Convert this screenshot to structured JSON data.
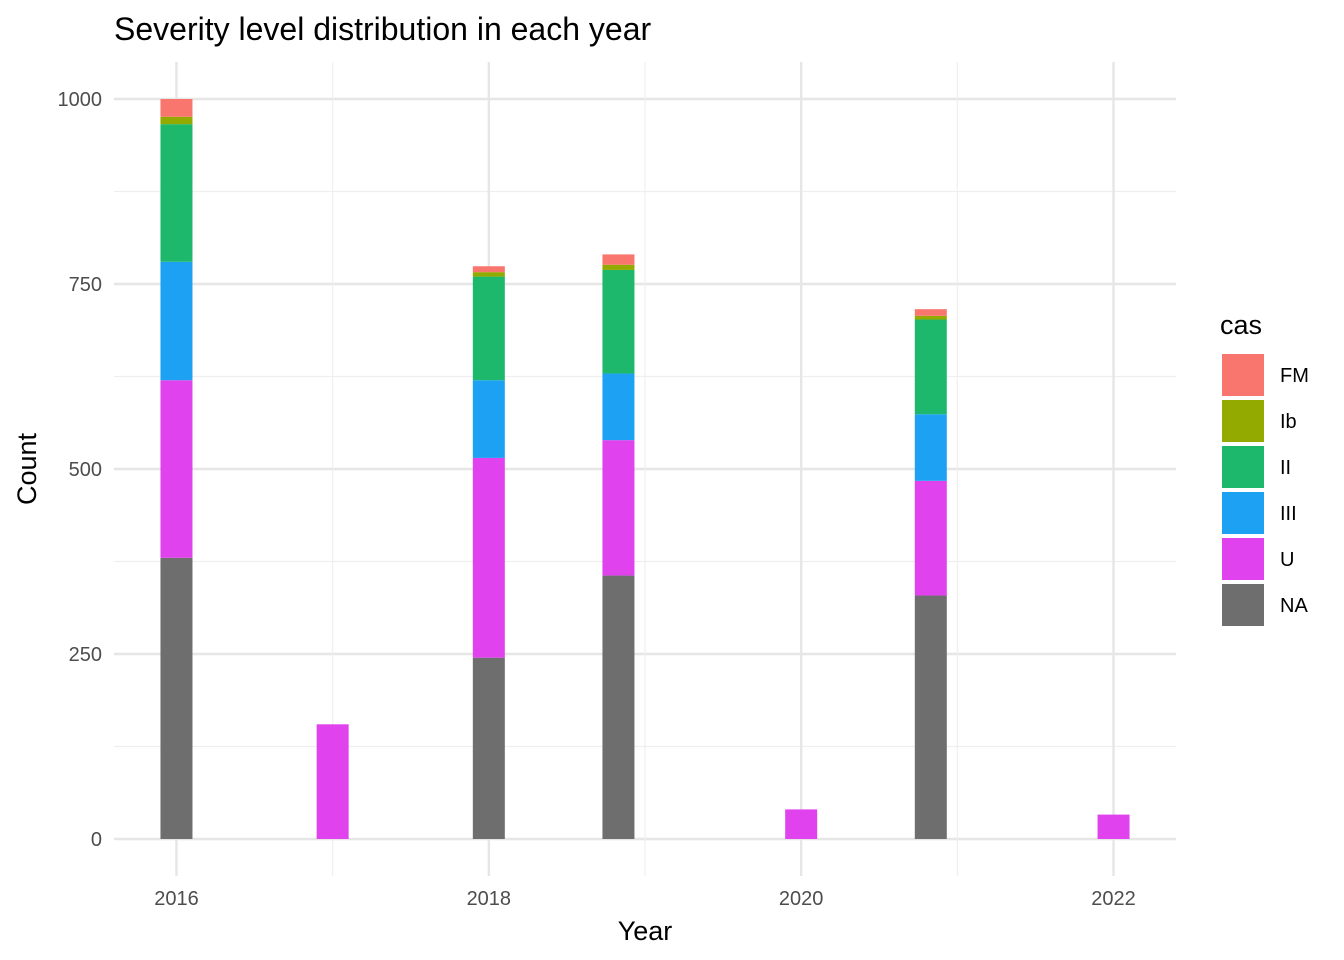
{
  "chart_data": {
    "type": "bar",
    "stacked": true,
    "title": "Severity level distribution in each year",
    "xlabel": "Year",
    "ylabel": "Count",
    "x_ticks": [
      2016,
      2018,
      2020,
      2022
    ],
    "y_ticks": [
      0,
      250,
      500,
      750,
      1000
    ],
    "xlim": [
      2015.6,
      2022.4
    ],
    "ylim": [
      -50,
      1050
    ],
    "grid": true,
    "legend": {
      "title": "cas",
      "position": "right"
    },
    "series": [
      {
        "name": "FM",
        "color": "#F8766D",
        "values": [
          24,
          0,
          8,
          14,
          0,
          9,
          0
        ]
      },
      {
        "name": "Ib",
        "color": "#93AA00",
        "values": [
          10,
          0,
          6,
          7,
          0,
          5,
          0
        ]
      },
      {
        "name": "II",
        "color": "#1DB86C",
        "values": [
          186,
          0,
          140,
          140,
          0,
          128,
          0
        ]
      },
      {
        "name": "III",
        "color": "#1DA1F2",
        "values": [
          160,
          0,
          105,
          90,
          0,
          90,
          0
        ]
      },
      {
        "name": "U",
        "color": "#E043EE",
        "values": [
          240,
          155,
          270,
          183,
          40,
          155,
          33
        ]
      },
      {
        "name": "NA",
        "color": "#6E6E6E",
        "values": [
          380,
          0,
          245,
          356,
          0,
          329,
          0
        ]
      }
    ],
    "x": [
      2016,
      2017,
      2018,
      2018.83,
      2020,
      2020.83,
      2022
    ]
  }
}
